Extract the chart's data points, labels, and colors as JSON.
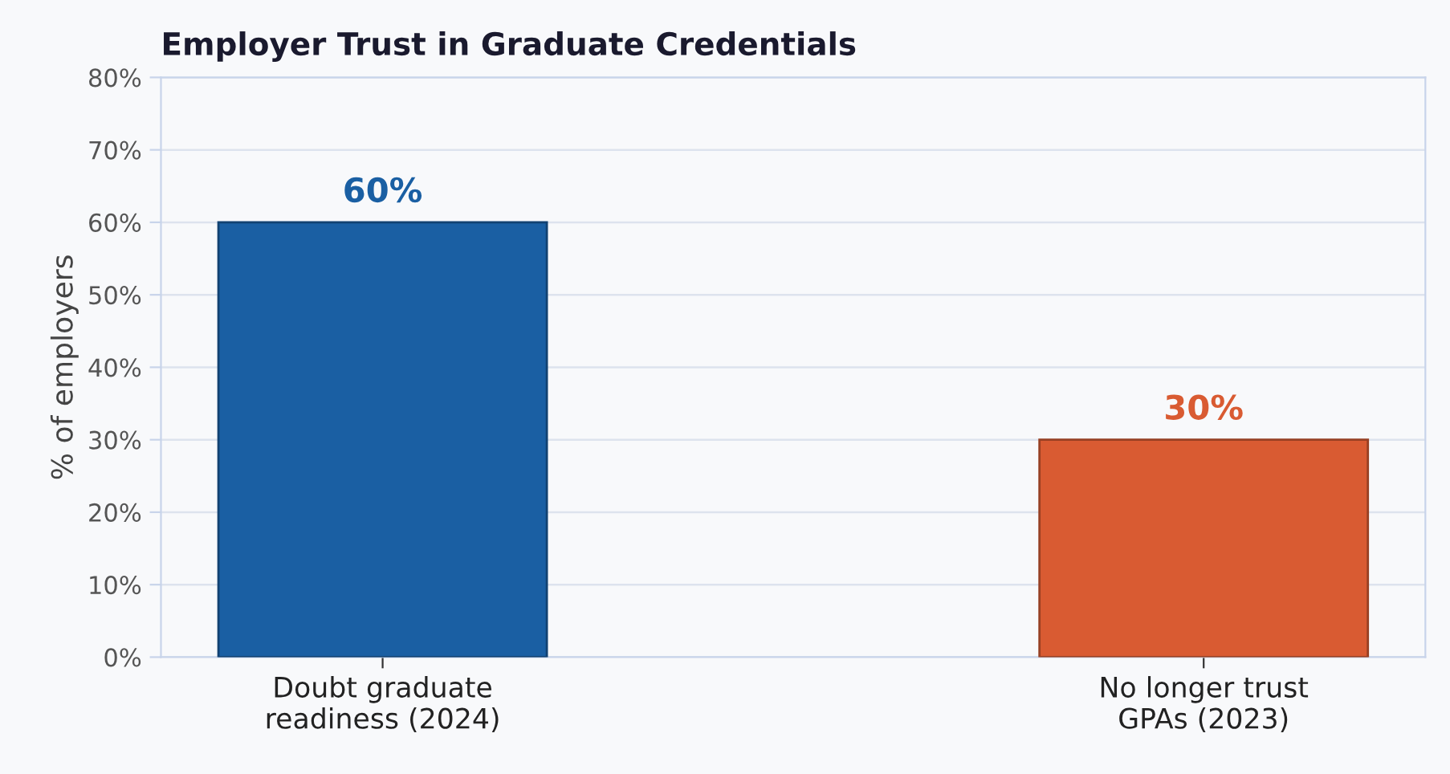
{
  "chart_data": {
    "type": "bar",
    "title": "Employer Trust in Graduate Credentials",
    "ylabel": "% of employers",
    "categories": [
      "Doubt graduate\nreadiness (2024)",
      "No longer trust\nGPAs (2023)"
    ],
    "values": [
      60,
      30
    ],
    "colors": [
      "#1a5fa3",
      "#d95b32"
    ],
    "value_labels": [
      "60%",
      "30%"
    ],
    "ylim": [
      0,
      80
    ],
    "yticks": [
      {
        "value": 0,
        "label": "0%"
      },
      {
        "value": 10,
        "label": "10%"
      },
      {
        "value": 20,
        "label": "20%"
      },
      {
        "value": 30,
        "label": "30%"
      },
      {
        "value": 40,
        "label": "40%"
      },
      {
        "value": 50,
        "label": "50%"
      },
      {
        "value": 60,
        "label": "60%"
      },
      {
        "value": 70,
        "label": "70%"
      },
      {
        "value": 80,
        "label": "80%"
      }
    ],
    "grid": "y"
  }
}
